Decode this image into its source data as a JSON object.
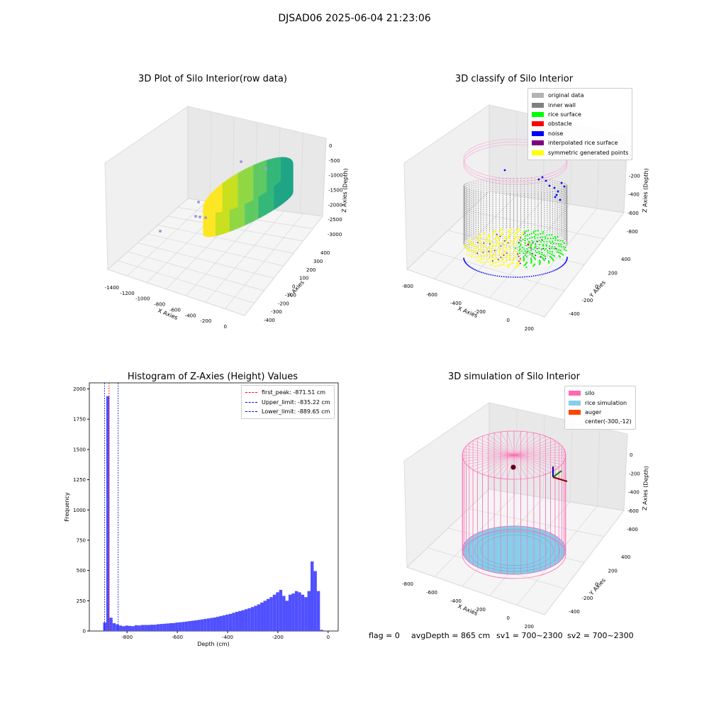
{
  "suptitle": "DJSAD06 2025-06-04 21:23:06",
  "panels": {
    "p1": {
      "title": "3D Plot of Silo Interior(row data)",
      "xlabel": "X Axies",
      "ylabel": "Y Axies",
      "zlabel": "Z Axies (Depth)",
      "xticks": [
        "-1400",
        "-1200",
        "-1000",
        "-800",
        "-600",
        "-400",
        "-200",
        "0"
      ],
      "yticks": [
        "-400",
        "-300",
        "-200",
        "-100",
        "0",
        "100",
        "200",
        "300",
        "400"
      ],
      "zticks": [
        "0",
        "-500",
        "-1000",
        "-1500",
        "-2000",
        "-2500",
        "-3000"
      ]
    },
    "p2": {
      "title": "3D classify of Silo Interior",
      "xlabel": "X Axies",
      "ylabel": "Y Axies",
      "zlabel": "Z Axies (Depth)",
      "xticks": [
        "-800",
        "-600",
        "-400",
        "-200",
        "0",
        "200"
      ],
      "yticks": [
        "-400",
        "-200",
        "0",
        "200",
        "400"
      ],
      "zticks": [
        "0",
        "-200",
        "-400",
        "-600",
        "-800"
      ],
      "legend": [
        {
          "label": "original data",
          "color": "#b3b3b3"
        },
        {
          "label": "inner wall",
          "color": "#808080"
        },
        {
          "label": "rice surface",
          "color": "#00ff00"
        },
        {
          "label": "obstacle",
          "color": "#ff0000"
        },
        {
          "label": "noise",
          "color": "#0000ff"
        },
        {
          "label": "interpolated rice surface",
          "color": "#800080"
        },
        {
          "label": "symmetric generated points",
          "color": "#ffff00"
        }
      ]
    },
    "p4": {
      "title": "3D simulation of Silo Interior",
      "xlabel": "X Axies",
      "ylabel": "Y Axies",
      "zlabel": "Z Axies (Depth)",
      "xticks": [
        "-800",
        "-600",
        "-400",
        "-200",
        "0",
        "200"
      ],
      "yticks": [
        "-400",
        "-200",
        "0",
        "200",
        "400"
      ],
      "zticks": [
        "0",
        "-200",
        "-400",
        "-600",
        "-800"
      ],
      "legend": [
        {
          "label": "silo",
          "color": "#ff69b4"
        },
        {
          "label": "rice simulation",
          "color": "#87ceeb"
        },
        {
          "label": "auger",
          "color": "#ff4500"
        },
        {
          "label": "center(-300,-12)",
          "color": ""
        }
      ],
      "status": {
        "flag": "flag = 0",
        "avg": "avgDepth = 865 cm",
        "sv1": "sv1 = 700~2300",
        "sv2": "sv2 = 700~2300"
      }
    }
  },
  "chart_data": [
    {
      "type": "scatter",
      "title": "3D Plot of Silo Interior(row data)",
      "xlabel": "X Axies",
      "ylabel": "Y Axies",
      "zlabel": "Z Axies (Depth)",
      "xlim": [
        -1500,
        100
      ],
      "ylim": [
        -450,
        450
      ],
      "zlim": [
        -3300,
        100
      ],
      "points_description": "",
      "colormap": "viridis"
    },
    {
      "type": "scatter",
      "title": "3D classify of Silo Interior",
      "xlabel": "X Axies",
      "ylabel": "Y Axies",
      "zlabel": "Z Axies (Depth)",
      "xlim": [
        -850,
        250
      ],
      "ylim": [
        -480,
        480
      ],
      "zlim": [
        -900,
        80
      ],
      "series": [
        {
          "name": "original data",
          "color": "#b3b3b3"
        },
        {
          "name": "inner wall",
          "color": "#808080"
        },
        {
          "name": "rice surface",
          "color": "#00ff00"
        },
        {
          "name": "obstacle",
          "color": "#ff0000"
        },
        {
          "name": "noise",
          "color": "#0000ff"
        },
        {
          "name": "interpolated rice surface",
          "color": "#800080"
        },
        {
          "name": "symmetric generated points",
          "color": "#ffff00"
        }
      ]
    },
    {
      "type": "bar",
      "title": "Histogram of Z-Axies (Height) Values",
      "xlabel": "Depth (cm)",
      "ylabel": "Frequency",
      "xlim": [
        -950,
        40
      ],
      "ylim": [
        0,
        2050
      ],
      "xticks": [
        -800,
        -600,
        -400,
        -200,
        0
      ],
      "yticks": [
        0,
        250,
        500,
        750,
        1000,
        1250,
        1500,
        1750,
        2000
      ],
      "bin_width": 12.5,
      "bins_start": [
        -895,
        -882.5,
        -870,
        -857.5,
        -845,
        -832.5,
        -820,
        -807.5,
        -795,
        -782.5,
        -770,
        -757.5,
        -745,
        -732.5,
        -720,
        -707.5,
        -695,
        -682.5,
        -670,
        -657.5,
        -645,
        -632.5,
        -620,
        -607.5,
        -595,
        -582.5,
        -570,
        -557.5,
        -545,
        -532.5,
        -520,
        -507.5,
        -495,
        -482.5,
        -470,
        -457.5,
        -445,
        -432.5,
        -420,
        -407.5,
        -395,
        -382.5,
        -370,
        -357.5,
        -345,
        -332.5,
        -320,
        -307.5,
        -295,
        -282.5,
        -270,
        -257.5,
        -245,
        -232.5,
        -220,
        -207.5,
        -195,
        -182.5,
        -170,
        -157.5,
        -145,
        -132.5,
        -120,
        -107.5,
        -95,
        -82.5,
        -70,
        -57.5,
        -45,
        -32.5,
        -20,
        -7.5
      ],
      "values": [
        70,
        1940,
        110,
        65,
        55,
        45,
        40,
        45,
        42,
        40,
        48,
        46,
        50,
        50,
        50,
        52,
        52,
        56,
        58,
        60,
        62,
        65,
        66,
        70,
        72,
        75,
        78,
        82,
        85,
        88,
        92,
        96,
        100,
        104,
        108,
        112,
        118,
        124,
        130,
        136,
        142,
        150,
        158,
        165,
        172,
        180,
        188,
        198,
        208,
        220,
        235,
        250,
        265,
        280,
        300,
        320,
        340,
        290,
        250,
        300,
        310,
        330,
        320,
        300,
        280,
        330,
        575,
        495,
        330,
        10,
        0,
        0
      ],
      "color": "#5050ff",
      "lines": [
        {
          "name": "first_peak: -871.51 cm",
          "x": -871.51,
          "color": "#ff0000"
        },
        {
          "name": "Upper_limit: -835.22 cm",
          "x": -835.22,
          "color": "#0000ff"
        },
        {
          "name": "Lower_limit: -889.65 cm",
          "x": -889.65,
          "color": "#0000ff"
        }
      ],
      "legend_position": "top-right"
    },
    {
      "type": "scatter",
      "title": "3D simulation of Silo Interior",
      "xlabel": "X Axies",
      "ylabel": "Y Axies",
      "zlabel": "Z Axies (Depth)",
      "xlim": [
        -850,
        250
      ],
      "ylim": [
        -480,
        480
      ],
      "zlim": [
        -900,
        80
      ],
      "series": [
        {
          "name": "silo",
          "color": "#ff69b4"
        },
        {
          "name": "rice simulation",
          "color": "#87ceeb"
        },
        {
          "name": "auger",
          "color": "#ff4500"
        }
      ],
      "center": [
        -300,
        -12
      ],
      "legend_position": "top-right"
    }
  ]
}
